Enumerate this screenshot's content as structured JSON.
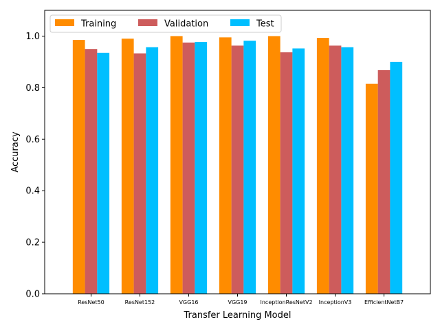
{
  "chart_data": {
    "type": "bar",
    "title": "",
    "xlabel": "Transfer Learning Model",
    "ylabel": "Accuracy",
    "ylim": [
      0,
      1.1
    ],
    "yticks": [
      "0.0",
      "0.2",
      "0.4",
      "0.6",
      "0.8",
      "1.0"
    ],
    "grid": false,
    "legend_position": "top-left",
    "legend_columns": 3,
    "categories": [
      "ResNet50",
      "ResNet152",
      "VGG16",
      "VGG19",
      "InceptionResNetV2",
      "InceptionV3",
      "EfficientNetB7"
    ],
    "series": [
      {
        "name": "Training",
        "color": "#ff8c00",
        "values": [
          0.985,
          0.99,
          1.0,
          0.995,
          1.0,
          0.993,
          0.815
        ]
      },
      {
        "name": "Validation",
        "color": "#cd5c5c",
        "values": [
          0.95,
          0.933,
          0.975,
          0.963,
          0.937,
          0.963,
          0.868
        ]
      },
      {
        "name": "Test",
        "color": "#00bfff",
        "values": [
          0.935,
          0.957,
          0.977,
          0.982,
          0.952,
          0.957,
          0.9
        ]
      }
    ]
  }
}
